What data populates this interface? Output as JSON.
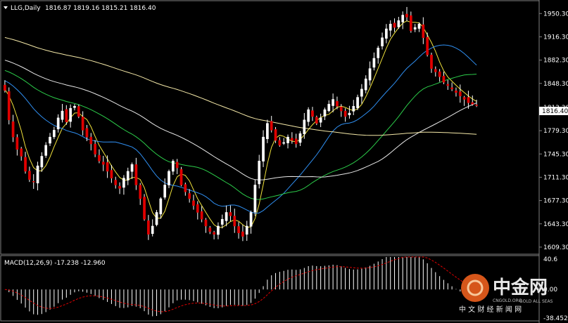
{
  "chart_data": [
    {
      "type": "candlestick",
      "symbol_label": "LLG,Daily",
      "ohlc_label": "1816.87 1819.16 1815.21 1816.40",
      "current_price": 1816.4,
      "current_price_label": "1816.40",
      "ylim": [
        1600,
        1968
      ],
      "y_ticks": [
        1609.3,
        1643.3,
        1677.3,
        1711.3,
        1745.3,
        1779.3,
        1813.3,
        1848.3,
        1882.3,
        1916.3,
        1950.3
      ],
      "y_tick_labels": [
        "1609.30",
        "1643.30",
        "1677.30",
        "1711.30",
        "1745.30",
        "1779.30",
        "1813.30",
        "1848.30",
        "1882.30",
        "1916.30",
        "1950.30"
      ],
      "closes": [
        1838,
        1795,
        1770,
        1752,
        1742,
        1720,
        1708,
        1705,
        1728,
        1742,
        1758,
        1770,
        1780,
        1798,
        1808,
        1792,
        1812,
        1815,
        1800,
        1780,
        1770,
        1760,
        1745,
        1735,
        1730,
        1720,
        1710,
        1700,
        1695,
        1710,
        1720,
        1730,
        1700,
        1680,
        1650,
        1628,
        1640,
        1660,
        1680,
        1700,
        1720,
        1735,
        1725,
        1700,
        1690,
        1680,
        1670,
        1660,
        1650,
        1640,
        1632,
        1628,
        1640,
        1650,
        1660,
        1655,
        1640,
        1630,
        1625,
        1640,
        1660,
        1700,
        1735,
        1770,
        1790,
        1780,
        1765,
        1758,
        1762,
        1770,
        1765,
        1760,
        1775,
        1795,
        1810,
        1800,
        1790,
        1798,
        1810,
        1818,
        1825,
        1815,
        1808,
        1800,
        1805,
        1815,
        1828,
        1840,
        1855,
        1870,
        1885,
        1900,
        1915,
        1928,
        1935,
        1930,
        1940,
        1948,
        1945,
        1925,
        1930,
        1935,
        1915,
        1890,
        1870,
        1865,
        1858,
        1850,
        1845,
        1840,
        1835,
        1830,
        1825,
        1820,
        1818,
        1816.4
      ],
      "series": [
        {
          "name": "",
          "color": "#f2e33c",
          "period": 5
        },
        {
          "name": "",
          "color": "#2f8ef0",
          "period": 20
        },
        {
          "name": "",
          "color": "#2ccd4a",
          "period": 40
        },
        {
          "name": "",
          "color": "#e8e8e8",
          "period": 60
        },
        {
          "name": "",
          "color": "#f5e9a8",
          "period": 120
        }
      ],
      "colors": {
        "up": "#ffffff",
        "down": "#e00000",
        "wick": "#ffffff"
      }
    },
    {
      "type": "bar",
      "indicator_label": "MACD(12,26,9) -17.238 -12.960",
      "ylim": [
        -38.452,
        40.6
      ],
      "y_tick_labels": [
        "40.6",
        "0.00",
        "-38.452"
      ],
      "macd_color": "#ffffff",
      "signal_color": "#e00000"
    }
  ],
  "watermark": {
    "brand": "中金网",
    "sub": "中 文 财 经 新 闻 网",
    "domain": "CNGOLD.ORG",
    "tag": "GOLD ALL SEAS"
  }
}
